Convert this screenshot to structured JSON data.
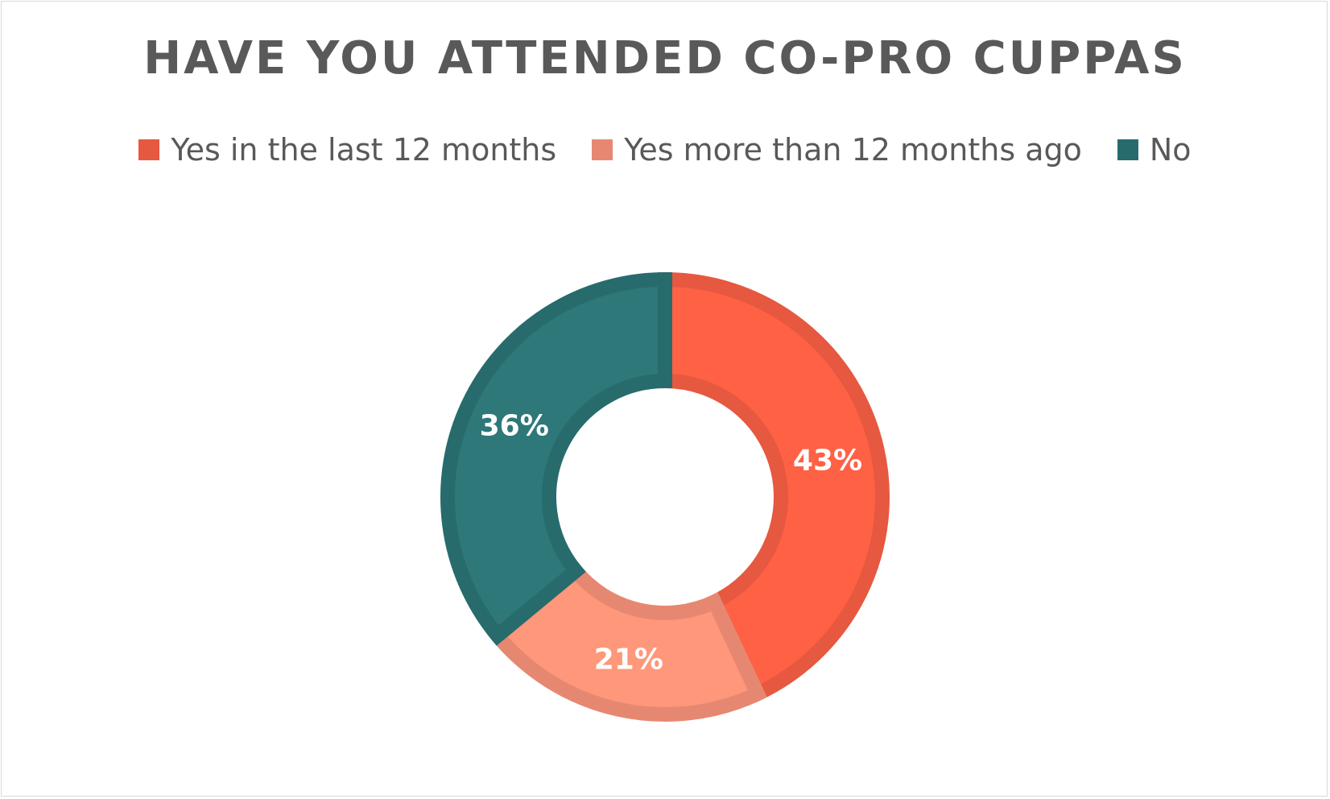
{
  "chart_data": {
    "type": "pie",
    "title": "HAVE YOU ATTENDED CO-PRO CUPPAS",
    "categories": [
      "Yes in the last 12 months",
      "Yes more than 12 months ago",
      "No"
    ],
    "values": [
      43,
      21,
      36
    ],
    "data_labels": [
      "43%",
      "21%",
      "36%"
    ],
    "colors": {
      "fill": [
        "#ff6145",
        "#ff977a",
        "#2e7879"
      ],
      "stroke": [
        "#e6583f",
        "#e68871",
        "#276b6d"
      ],
      "legend": [
        "#e6583f",
        "#e68871",
        "#276b6d"
      ]
    },
    "donut": true,
    "legend_position": "top"
  }
}
